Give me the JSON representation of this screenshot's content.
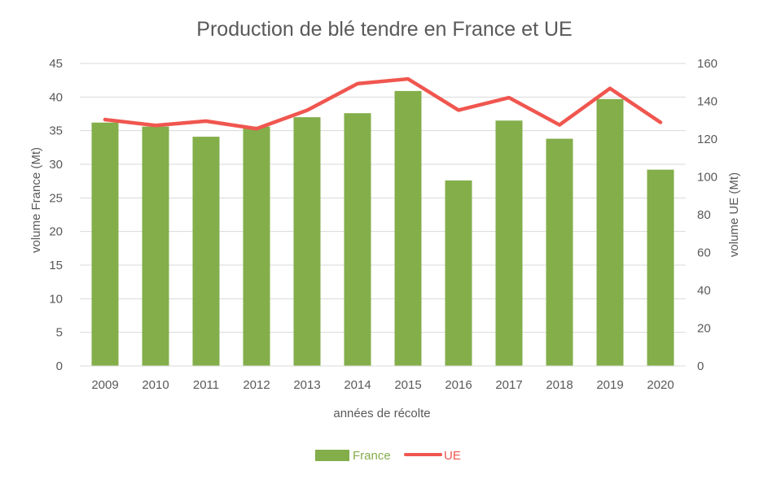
{
  "chart_data": {
    "type": "bar",
    "title": "Production de blé tendre en France et UE",
    "xlabel": "années de récolte",
    "ylabel_left": "volume France (Mt)",
    "ylabel_right": "volume UE (Mt)",
    "categories": [
      "2009",
      "2010",
      "2011",
      "2012",
      "2013",
      "2014",
      "2015",
      "2016",
      "2017",
      "2018",
      "2019",
      "2020"
    ],
    "series": [
      {
        "name": "France",
        "type": "bar",
        "axis": "left",
        "color": "#83AE4A",
        "values": [
          36.2,
          35.6,
          34.1,
          35.6,
          37.0,
          37.6,
          40.9,
          27.6,
          36.5,
          33.8,
          39.7,
          29.2
        ]
      },
      {
        "name": "UE",
        "type": "line",
        "axis": "right",
        "color": "#F0564F",
        "values": [
          130.3,
          127.2,
          129.5,
          125.5,
          135.2,
          149.3,
          151.8,
          135.3,
          141.9,
          127.5,
          146.8,
          128.8
        ]
      }
    ],
    "ylim_left": [
      0,
      45
    ],
    "yticks_left": [
      0,
      5,
      10,
      15,
      20,
      25,
      30,
      35,
      40,
      45
    ],
    "ylim_right": [
      0,
      160
    ],
    "yticks_right": [
      0,
      20,
      40,
      60,
      80,
      100,
      120,
      140,
      160
    ],
    "grid": true,
    "legend_position": "bottom",
    "colors": {
      "text": "#595959",
      "grid": "#D9D9D9",
      "left_axis_label": "#83AE4A",
      "right_axis_label": "#F0564F"
    }
  }
}
